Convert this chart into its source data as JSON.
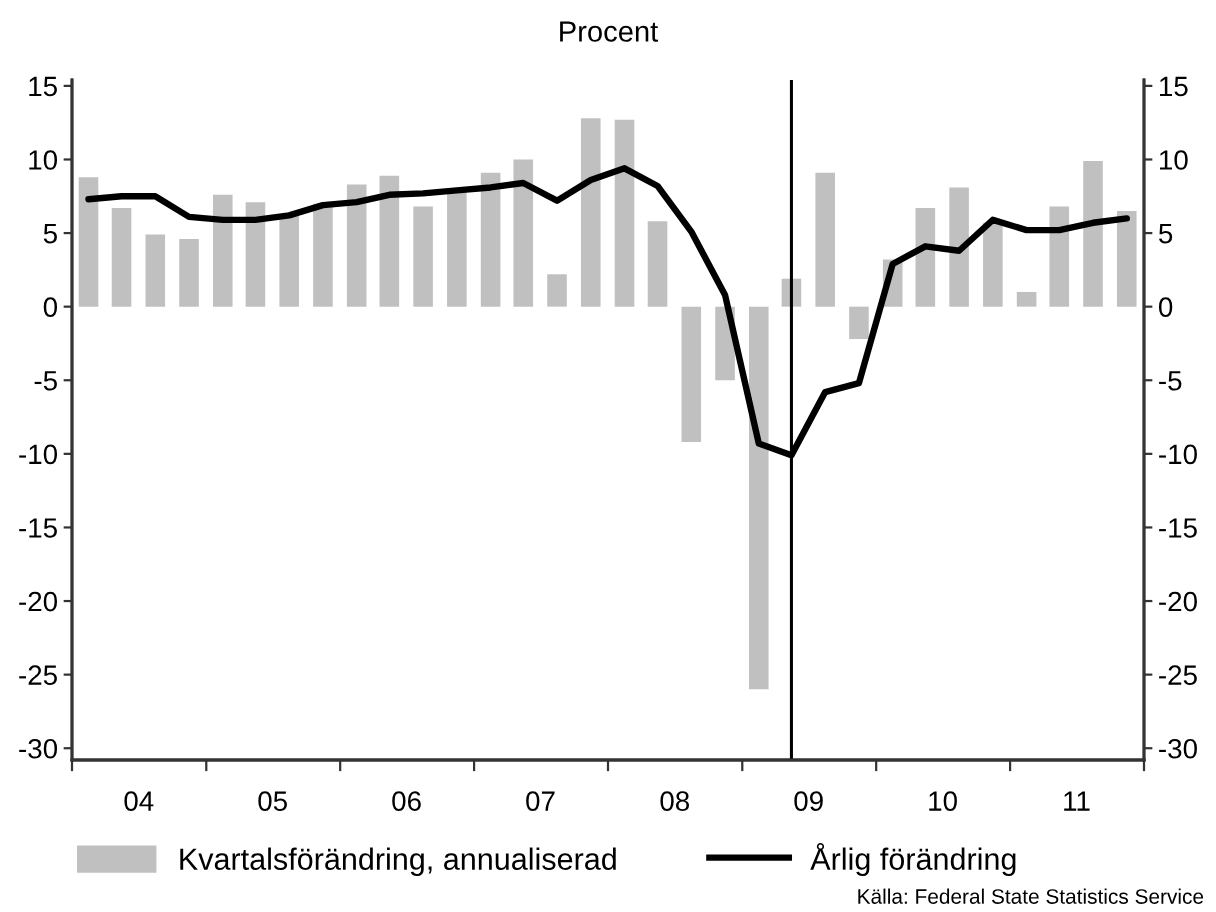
{
  "chart_data": {
    "type": "bar",
    "subtitle": "Procent",
    "x": [
      "2004-02-15",
      "2004-05-15",
      "2004-08-15",
      "2004-11-15",
      "2005-02-15",
      "2005-05-15",
      "2005-08-15",
      "2005-11-15",
      "2006-02-15",
      "2006-05-15",
      "2006-08-15",
      "2006-11-15",
      "2007-02-15",
      "2007-05-15",
      "2007-08-15",
      "2007-11-15",
      "2008-02-15",
      "2008-05-15",
      "2008-08-15",
      "2008-11-15",
      "2009-02-15",
      "2009-05-15",
      "2009-08-15",
      "2009-11-15",
      "2010-02-15",
      "2010-05-15",
      "2010-08-15",
      "2010-11-15",
      "2011-02-15",
      "2011-05-15",
      "2011-08-15",
      "2011-11-15"
    ],
    "series": [
      {
        "name": "Kvartalsförändring, annualiserad",
        "color": "#c0c0c0",
        "values": [
          8.8,
          6.7,
          4.9,
          4.6,
          7.6,
          7.1,
          6.2,
          7.0,
          8.3,
          8.9,
          6.8,
          7.8,
          9.1,
          10.0,
          2.2,
          12.8,
          12.7,
          5.8,
          -9.2,
          -5.0,
          -26.0,
          1.9,
          9.1,
          -2.2,
          3.2,
          6.7,
          8.1,
          5.7,
          1.0,
          6.8,
          9.9,
          6.5
        ]
      },
      {
        "name": "Årlig förändring",
        "type": "line",
        "color": "#000000",
        "values": [
          7.3,
          7.5,
          7.5,
          6.1,
          5.9,
          5.9,
          6.2,
          6.9,
          7.1,
          7.6,
          7.7,
          7.9,
          8.1,
          8.4,
          7.2,
          8.6,
          9.4,
          8.2,
          5.1,
          0.8,
          -9.3,
          -10.1,
          -5.8,
          -5.2,
          2.9,
          4.1,
          3.8,
          5.9,
          5.2,
          5.2,
          5.7,
          6.0
        ]
      }
    ],
    "xlim": [
      "2004-01-01",
      "2012-01-01"
    ],
    "xticks": [
      {
        "value": "2004-01-01",
        "label": null
      },
      {
        "value": "2004-07-01",
        "label": "04"
      },
      {
        "value": "2005-01-01",
        "label": null
      },
      {
        "value": "2005-07-01",
        "label": "05"
      },
      {
        "value": "2006-01-01",
        "label": null
      },
      {
        "value": "2006-07-01",
        "label": "06"
      },
      {
        "value": "2007-01-01",
        "label": null
      },
      {
        "value": "2007-07-01",
        "label": "07"
      },
      {
        "value": "2008-01-01",
        "label": null
      },
      {
        "value": "2008-07-01",
        "label": "08"
      },
      {
        "value": "2009-01-01",
        "label": null
      },
      {
        "value": "2009-07-01",
        "label": "09"
      },
      {
        "value": "2010-01-01",
        "label": null
      },
      {
        "value": "2010-07-01",
        "label": "10"
      },
      {
        "value": "2011-01-01",
        "label": null
      },
      {
        "value": "2011-07-01",
        "label": "11"
      },
      {
        "value": "2012-01-01",
        "label": null
      }
    ],
    "ylim": [
      -30.8,
      15.4
    ],
    "yticks": [
      -30,
      -25,
      -20,
      -15,
      -10,
      -5,
      0,
      5,
      10,
      15
    ],
    "y2lim": [
      -30.8,
      15.4
    ],
    "y2ticks": [
      -30,
      -25,
      -20,
      -15,
      -10,
      -5,
      0,
      5,
      10,
      15
    ],
    "ref_lines": [
      {
        "axis": "x",
        "value": "2009-05-15",
        "color": "#000000"
      }
    ],
    "legend": "bottom",
    "annotations": [
      "Källa: Federal State Statistics Service"
    ]
  }
}
